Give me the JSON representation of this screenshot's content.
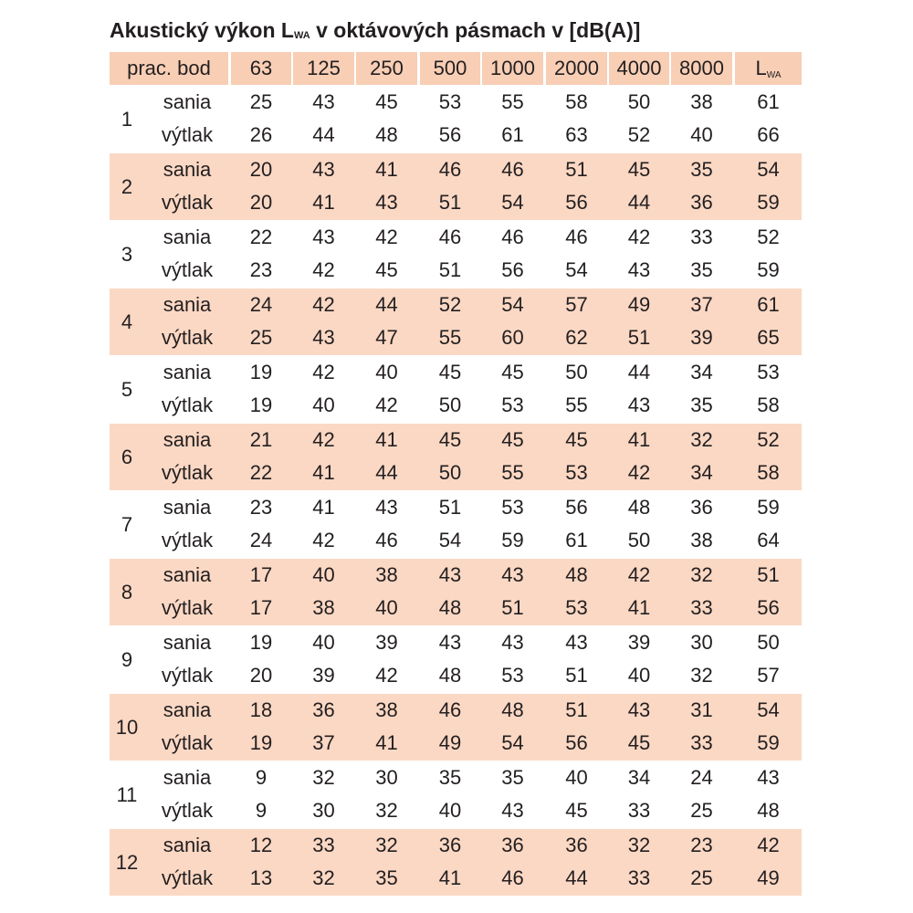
{
  "title": {
    "prefix": "Akustický výkon L",
    "subscript": "WA",
    "suffix": " v oktávových pásmach v [dB(A)]"
  },
  "table": {
    "columns": [
      "prac. bod",
      "63",
      "125",
      "250",
      "500",
      "1000",
      "2000",
      "4000",
      "8000"
    ],
    "total_column": {
      "main": "L",
      "subscript": "WA"
    },
    "rows": [
      {
        "point": "1",
        "shaded": false,
        "sania": [
          "25",
          "43",
          "45",
          "53",
          "55",
          "58",
          "50",
          "38",
          "61"
        ],
        "vytlak": [
          "26",
          "44",
          "48",
          "56",
          "61",
          "63",
          "52",
          "40",
          "66"
        ]
      },
      {
        "point": "2",
        "shaded": true,
        "sania": [
          "20",
          "43",
          "41",
          "46",
          "46",
          "51",
          "45",
          "35",
          "54"
        ],
        "vytlak": [
          "20",
          "41",
          "43",
          "51",
          "54",
          "56",
          "44",
          "36",
          "59"
        ]
      },
      {
        "point": "3",
        "shaded": false,
        "sania": [
          "22",
          "43",
          "42",
          "46",
          "46",
          "46",
          "42",
          "33",
          "52"
        ],
        "vytlak": [
          "23",
          "42",
          "45",
          "51",
          "56",
          "54",
          "43",
          "35",
          "59"
        ]
      },
      {
        "point": "4",
        "shaded": true,
        "sania": [
          "24",
          "42",
          "44",
          "52",
          "54",
          "57",
          "49",
          "37",
          "61"
        ],
        "vytlak": [
          "25",
          "43",
          "47",
          "55",
          "60",
          "62",
          "51",
          "39",
          "65"
        ]
      },
      {
        "point": "5",
        "shaded": false,
        "sania": [
          "19",
          "42",
          "40",
          "45",
          "45",
          "50",
          "44",
          "34",
          "53"
        ],
        "vytlak": [
          "19",
          "40",
          "42",
          "50",
          "53",
          "55",
          "43",
          "35",
          "58"
        ]
      },
      {
        "point": "6",
        "shaded": true,
        "sania": [
          "21",
          "42",
          "41",
          "45",
          "45",
          "45",
          "41",
          "32",
          "52"
        ],
        "vytlak": [
          "22",
          "41",
          "44",
          "50",
          "55",
          "53",
          "42",
          "34",
          "58"
        ]
      },
      {
        "point": "7",
        "shaded": false,
        "sania": [
          "23",
          "41",
          "43",
          "51",
          "53",
          "56",
          "48",
          "36",
          "59"
        ],
        "vytlak": [
          "24",
          "42",
          "46",
          "54",
          "59",
          "61",
          "50",
          "38",
          "64"
        ]
      },
      {
        "point": "8",
        "shaded": true,
        "sania": [
          "17",
          "40",
          "38",
          "43",
          "43",
          "48",
          "42",
          "32",
          "51"
        ],
        "vytlak": [
          "17",
          "38",
          "40",
          "48",
          "51",
          "53",
          "41",
          "33",
          "56"
        ]
      },
      {
        "point": "9",
        "shaded": false,
        "sania": [
          "19",
          "40",
          "39",
          "43",
          "43",
          "43",
          "39",
          "30",
          "50"
        ],
        "vytlak": [
          "20",
          "39",
          "42",
          "48",
          "53",
          "51",
          "40",
          "32",
          "57"
        ]
      },
      {
        "point": "10",
        "shaded": true,
        "sania": [
          "18",
          "36",
          "38",
          "46",
          "48",
          "51",
          "43",
          "31",
          "54"
        ],
        "vytlak": [
          "19",
          "37",
          "41",
          "49",
          "54",
          "56",
          "45",
          "33",
          "59"
        ]
      },
      {
        "point": "11",
        "shaded": false,
        "sania": [
          "9",
          "32",
          "30",
          "35",
          "35",
          "40",
          "34",
          "24",
          "43"
        ],
        "vytlak": [
          "9",
          "30",
          "32",
          "40",
          "43",
          "45",
          "33",
          "25",
          "48"
        ]
      },
      {
        "point": "12",
        "shaded": true,
        "sania": [
          "12",
          "33",
          "32",
          "36",
          "36",
          "36",
          "32",
          "23",
          "42"
        ],
        "vytlak": [
          "13",
          "32",
          "35",
          "41",
          "46",
          "44",
          "33",
          "25",
          "49"
        ]
      }
    ],
    "row_labels": {
      "sania": "sania",
      "vytlak": "výtlak"
    }
  },
  "colors": {
    "header_fill": "#f8ceb5",
    "band_fill": "#fbd8c4",
    "text": "#231f20"
  }
}
